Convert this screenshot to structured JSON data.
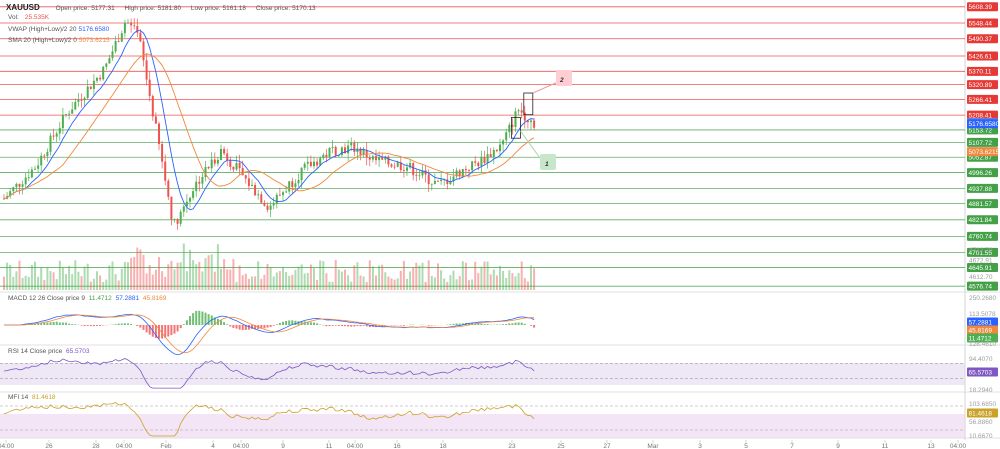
{
  "header": {
    "symbol": "XAUUSD",
    "open_label": "Open price:",
    "open": "5177.31",
    "high_label": "High price:",
    "high": "5181.80",
    "low_label": "Low price:",
    "low": "5161.18",
    "close_label": "Close price:",
    "close": "5170.13",
    "vol_label": "Vol:",
    "vol": "25.535K",
    "vwap_label": "VWAP (High+Low)/2 20",
    "vwap": "5176.6580",
    "sma_label": "SMA 20 (High+Low)/2 0",
    "sma": "5073.6215"
  },
  "indicators": {
    "macd_label": "MACD 12 26 Close price 9",
    "macd_vals": [
      "11.4712",
      "57.2881",
      "45.8169"
    ],
    "rsi_label": "RSI 14 Close price",
    "rsi_val": "65.5703",
    "mfi_label": "MFI 14",
    "mfi_val": "81.4618"
  },
  "colors": {
    "up": "#4caf50",
    "down": "#ef5350",
    "vwap": "#2962ff",
    "sma": "#f0883e",
    "resistance": "#e53935",
    "support": "#43a047",
    "macd": "#2962ff",
    "signal": "#f0883e",
    "rsi": "#7e57c2",
    "mfi": "#c9a227"
  },
  "chart_data": {
    "type": "candlestick",
    "price_range": [
      4570,
      5615
    ],
    "resistance_levels": [
      "5608.39",
      "5548.44",
      "5490.37",
      "5426.61",
      "5370.11",
      "5320.89",
      "5266.41",
      "5208.41"
    ],
    "support_levels": [
      "5153.72",
      "5107.72",
      "5052.87",
      "4996.26",
      "4937.88",
      "4881.57",
      "4821.84",
      "4760.74",
      "4701.55",
      "4645.91",
      "4576.74"
    ],
    "faint_levels": [
      "4712.70",
      "4672.91",
      "4612.70"
    ],
    "markers": [
      {
        "label": "5180.72",
        "color": "#5b8def"
      },
      {
        "label": "5176.6580",
        "color": "#2962ff"
      },
      {
        "label": "5073.6215",
        "color": "#f0883e"
      }
    ],
    "annotations": [
      "1",
      "2"
    ],
    "x_ticks": [
      "04:00",
      "26",
      "28",
      "04:00",
      "Feb",
      "4",
      "04:00",
      "9",
      "11",
      "04:00",
      "16",
      "18",
      "23",
      "25",
      "27",
      "Mar",
      "3",
      "5",
      "7",
      "9",
      "11",
      "13",
      "04:00"
    ],
    "macd": {
      "axis": [
        "250.2680",
        "113.5078",
        "57.2881",
        "45.8169",
        "11.4712",
        "128.4610"
      ],
      "values": {
        "macd": "57.2881",
        "signal": "45.8169",
        "hist": "11.4712"
      }
    },
    "rsi": {
      "axis": [
        "94.4070",
        "65.5703",
        "18.2940"
      ],
      "levels": [
        70,
        30
      ]
    },
    "mfi": {
      "axis": [
        "103.6850",
        "81.4618",
        "56.8860",
        "10.6670"
      ],
      "levels": [
        80,
        20
      ]
    }
  }
}
